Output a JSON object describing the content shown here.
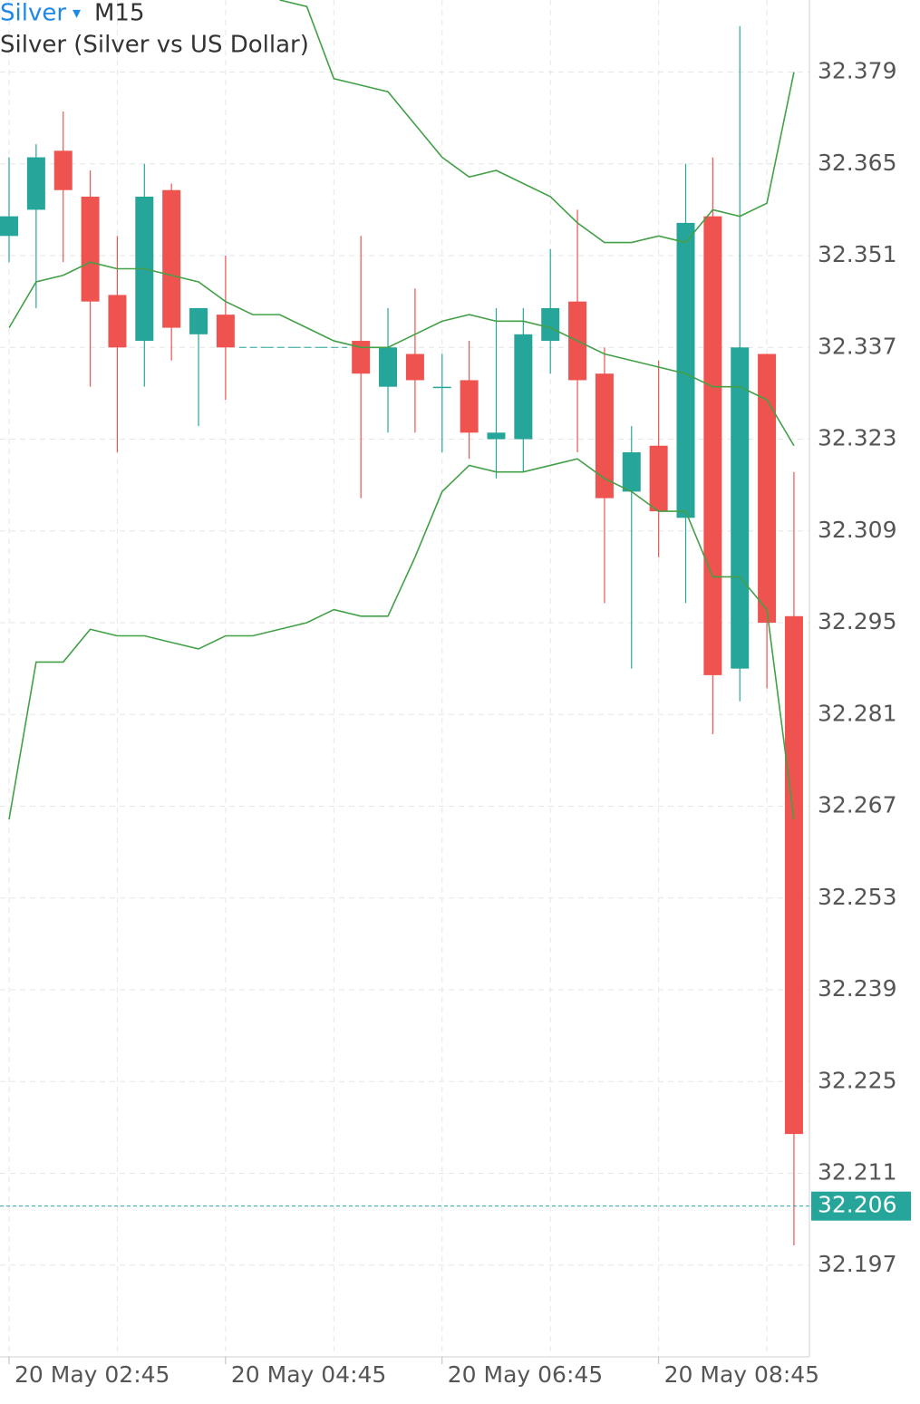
{
  "chart_data": {
    "type": "candlestick",
    "title": "Silver",
    "dropdown": "▾",
    "timeframe": "M15",
    "subtitle": "Silver (Silver vs US Dollar)",
    "categories": [
      "20 May 02:45",
      null,
      null,
      null,
      null,
      null,
      null,
      null,
      "20 May 04:45",
      null,
      null,
      null,
      null,
      null,
      null,
      null,
      "20 May 06:45",
      null,
      null,
      null,
      null,
      null,
      null,
      null,
      "20 May 08:45",
      null,
      null,
      null,
      null,
      null
    ],
    "open": [
      32.354,
      32.358,
      32.367,
      32.36,
      32.345,
      32.338,
      32.361,
      32.339,
      32.342,
      32.337,
      32.337,
      32.337,
      32.337,
      32.338,
      32.331,
      32.336,
      32.331,
      32.332,
      32.323,
      32.323,
      32.338,
      32.344,
      32.333,
      32.315,
      32.322,
      32.311,
      32.357,
      32.288,
      32.336,
      32.296
    ],
    "high": [
      32.366,
      32.368,
      32.373,
      32.364,
      32.354,
      32.365,
      32.362,
      32.343,
      32.351,
      32.337,
      32.337,
      32.337,
      32.337,
      32.354,
      32.343,
      32.346,
      32.336,
      32.338,
      32.343,
      32.343,
      32.352,
      32.358,
      32.337,
      32.325,
      32.335,
      32.365,
      32.366,
      32.386,
      32.336,
      32.318
    ],
    "low": [
      32.35,
      32.343,
      32.35,
      32.331,
      32.321,
      32.331,
      32.335,
      32.325,
      32.329,
      32.337,
      32.337,
      32.337,
      32.337,
      32.314,
      32.324,
      32.324,
      32.321,
      32.32,
      32.317,
      32.318,
      32.333,
      32.321,
      32.298,
      32.288,
      32.305,
      32.298,
      32.278,
      32.283,
      32.285,
      32.2
    ],
    "close": [
      32.357,
      32.366,
      32.361,
      32.344,
      32.337,
      32.36,
      32.34,
      32.343,
      32.337,
      32.337,
      32.337,
      32.337,
      32.337,
      32.333,
      32.337,
      32.332,
      32.331,
      32.324,
      32.324,
      32.339,
      32.343,
      32.332,
      32.314,
      32.321,
      32.312,
      32.356,
      32.287,
      32.337,
      32.295,
      32.217
    ],
    "up_color": "#26a69a",
    "down_color": "#ef5350",
    "bands": {
      "color": "#43a047",
      "upper": [
        null,
        null,
        null,
        null,
        null,
        null,
        null,
        null,
        null,
        null,
        32.39,
        32.389,
        32.378,
        32.377,
        32.376,
        32.371,
        32.366,
        32.363,
        32.364,
        32.362,
        32.36,
        32.356,
        32.353,
        32.353,
        32.354,
        32.353,
        32.358,
        32.357,
        32.359,
        32.379
      ],
      "middle": [
        32.34,
        32.347,
        32.348,
        32.35,
        32.349,
        32.349,
        32.348,
        32.347,
        32.344,
        32.342,
        32.342,
        32.34,
        32.338,
        32.337,
        32.337,
        32.339,
        32.341,
        32.342,
        32.341,
        32.341,
        32.34,
        32.338,
        32.336,
        32.335,
        32.334,
        32.333,
        32.331,
        32.331,
        32.329,
        32.322
      ],
      "lower": [
        32.265,
        32.289,
        32.289,
        32.294,
        32.293,
        32.293,
        32.292,
        32.291,
        32.293,
        32.293,
        32.294,
        32.295,
        32.297,
        32.296,
        32.296,
        32.305,
        32.315,
        32.319,
        32.318,
        32.318,
        32.319,
        32.32,
        32.317,
        32.315,
        32.312,
        32.312,
        32.302,
        32.302,
        32.297,
        32.265
      ]
    },
    "last_price": 32.206,
    "ylim": [
      32.183,
      32.39
    ],
    "yticks": [
      32.197,
      32.211,
      32.225,
      32.239,
      32.253,
      32.267,
      32.281,
      32.295,
      32.309,
      32.323,
      32.337,
      32.351,
      32.365,
      32.379
    ],
    "grid": true
  }
}
